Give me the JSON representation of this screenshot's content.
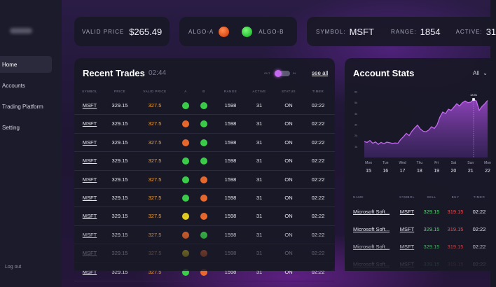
{
  "sidebar": {
    "items": [
      {
        "label": "Home",
        "active": true
      },
      {
        "label": "Accounts",
        "active": false
      },
      {
        "label": "Trading Platform",
        "active": false
      },
      {
        "label": "Setting",
        "active": false
      }
    ],
    "logout_label": "Log out"
  },
  "header": {
    "valid_price_label": "VALID PRICE",
    "valid_price_value": "$265.49",
    "algo_a_label": "ALGO-A",
    "algo_b_label": "ALGO-B",
    "symbol_label": "SYMBOL:",
    "symbol_value": "MSFT",
    "range_label": "RANGE:",
    "range_value": "1854",
    "active_label": "ACTIVE:",
    "active_value": "31"
  },
  "trades": {
    "title": "Recent Trades",
    "time": "02:44",
    "toggle_out_label": "OUT",
    "toggle_in_label": "IN",
    "see_all_label": "see all",
    "columns": [
      "SYMBOL",
      "PRICE",
      "VALID PRICE",
      "A",
      "B",
      "RANGE",
      "ACTIVE",
      "STATUS",
      "TIMER"
    ],
    "rows": [
      {
        "symbol": "MSFT",
        "price": "329.15",
        "valid": "327.5",
        "a": "green",
        "b": "green",
        "range": "1598",
        "active": "31",
        "status": "ON",
        "timer": "02:22"
      },
      {
        "symbol": "MSFT",
        "price": "329.15",
        "valid": "327.5",
        "a": "orange",
        "b": "green",
        "range": "1598",
        "active": "31",
        "status": "ON",
        "timer": "02:22"
      },
      {
        "symbol": "MSFT",
        "price": "329.15",
        "valid": "327.5",
        "a": "orange",
        "b": "green",
        "range": "1598",
        "active": "31",
        "status": "ON",
        "timer": "02:22"
      },
      {
        "symbol": "MSFT",
        "price": "329.15",
        "valid": "327.5",
        "a": "green",
        "b": "green",
        "range": "1598",
        "active": "31",
        "status": "ON",
        "timer": "02:22"
      },
      {
        "symbol": "MSFT",
        "price": "329.15",
        "valid": "327.5",
        "a": "green",
        "b": "orange",
        "range": "1598",
        "active": "31",
        "status": "ON",
        "timer": "02:22"
      },
      {
        "symbol": "MSFT",
        "price": "329.15",
        "valid": "327.5",
        "a": "green",
        "b": "orange",
        "range": "1598",
        "active": "31",
        "status": "ON",
        "timer": "02:22"
      },
      {
        "symbol": "MSFT",
        "price": "329.15",
        "valid": "327.5",
        "a": "yellow",
        "b": "orange",
        "range": "1598",
        "active": "31",
        "status": "ON",
        "timer": "02:22"
      },
      {
        "symbol": "MSFT",
        "price": "329.15",
        "valid": "327.5",
        "a": "orange",
        "b": "green",
        "range": "1598",
        "active": "31",
        "status": "ON",
        "timer": "02:22"
      },
      {
        "symbol": "MSFT",
        "price": "329.15",
        "valid": "327.5",
        "a": "yellow",
        "b": "orange",
        "range": "1598",
        "active": "31",
        "status": "ON",
        "timer": "02:22"
      },
      {
        "symbol": "MSFT",
        "price": "329.15",
        "valid": "327.5",
        "a": "green",
        "b": "orange",
        "range": "1598",
        "active": "31",
        "status": "ON",
        "timer": "02:22"
      }
    ]
  },
  "stats": {
    "title": "Account Stats",
    "filter_label": "All",
    "columns": [
      "NAME",
      "SYMBOL",
      "SELL",
      "BUY",
      "TIMER"
    ],
    "rows": [
      {
        "name": "Microsoft Soft...",
        "symbol": "MSFT",
        "sell": "329.15",
        "buy": "319.15",
        "timer": "02:22"
      },
      {
        "name": "Microsoft Soft...",
        "symbol": "MSFT",
        "sell": "329.15",
        "buy": "319.15",
        "timer": "02:22"
      },
      {
        "name": "Microsoft Soft...",
        "symbol": "MSFT",
        "sell": "329.15",
        "buy": "319.15",
        "timer": "02:22"
      },
      {
        "name": "Microsoft Soft...",
        "symbol": "MSFT",
        "sell": "329.15",
        "buy": "319.15",
        "timer": "02:22"
      }
    ]
  },
  "colors": {
    "accent": "#b455e6",
    "green": "#3bd24a",
    "orange": "#ee6a2c",
    "yellow": "#e6d020",
    "valid_price_text": "#f0a040",
    "buy_text": "#f04a4a",
    "sell_text": "#4cd96a"
  },
  "chart_data": {
    "type": "area",
    "title": "",
    "y_tick_labels": [
      "1k",
      "2k",
      "3k",
      "4k",
      "5k",
      "6k"
    ],
    "ylim": [
      0,
      6000
    ],
    "x_day_labels": [
      "Mon",
      "Tue",
      "Wed",
      "Thu",
      "Fri",
      "Sat",
      "Sun",
      "Mon"
    ],
    "x_date_labels": [
      "15",
      "16",
      "17",
      "18",
      "19",
      "20",
      "21",
      "22"
    ],
    "highlight_label": "18.9k",
    "series": [
      {
        "values": [
          1450,
          1380,
          1550,
          1300,
          1420,
          1200,
          1380,
          1250,
          1400,
          1350,
          1280,
          1320,
          1300,
          1650,
          1900,
          2200,
          2000,
          2400,
          2700,
          2950,
          2600,
          2400,
          2350,
          2500,
          2800,
          2650,
          3000,
          3700,
          4150,
          4000,
          4400,
          4300,
          4600,
          4900,
          4700,
          5000,
          5150,
          5000,
          5050,
          5300,
          5150,
          4300,
          4650,
          4900,
          5200
        ]
      }
    ]
  }
}
